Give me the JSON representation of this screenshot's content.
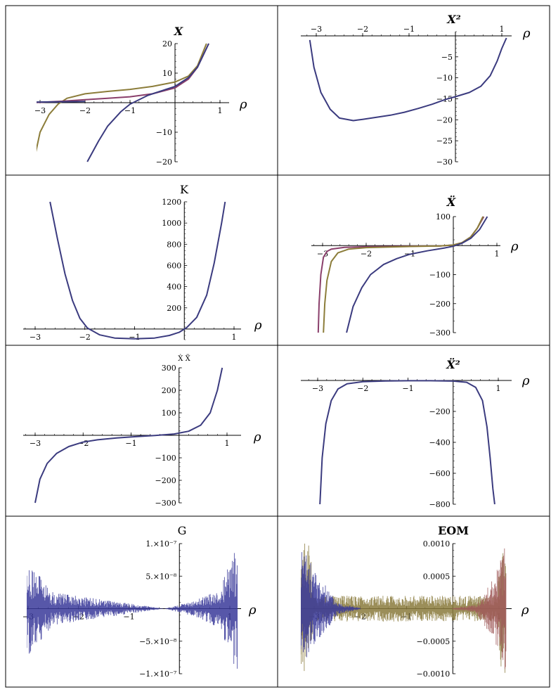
{
  "colors": {
    "blue": "#3b3b7f",
    "olive": "#8c7d3a",
    "purple": "#8a3f6b",
    "border": "#000000",
    "noise_blue": "#3a3a9a",
    "noise_olive": "#8a7a3c",
    "noise_red": "#a05a5a"
  },
  "chart_data": [
    {
      "type": "line",
      "title": "X",
      "xlabel": "ρ",
      "xlim": [
        -3.3,
        1.15
      ],
      "ylim": [
        -20,
        20
      ],
      "xticks": [
        -3,
        -2,
        -1,
        1
      ],
      "yticks": [
        -20,
        -10,
        10,
        20
      ],
      "series": [
        {
          "color": "olive",
          "x": [
            -3.14,
            -3.0,
            -2.8,
            -2.6,
            -2.4,
            -2.0,
            -1.5,
            -1.0,
            -0.5,
            0.0,
            0.3,
            0.5,
            0.7
          ],
          "y": [
            -20,
            -10,
            -4,
            -0.5,
            1.5,
            3.0,
            3.8,
            4.5,
            5.5,
            7.0,
            9.0,
            12.5,
            20
          ]
        },
        {
          "color": "purple",
          "x": [
            -3.14,
            -2.5,
            -2.0,
            -1.5,
            -1.0,
            -0.5,
            0.0,
            0.3,
            0.5,
            0.75
          ],
          "y": [
            0,
            0.5,
            1.0,
            1.5,
            2.0,
            3.0,
            5.0,
            8.0,
            12.0,
            20
          ]
        },
        {
          "color": "blue",
          "x": [
            -1.95,
            -1.7,
            -1.5,
            -1.2,
            -1.0,
            -0.6,
            -0.2,
            0.0,
            0.3,
            0.5,
            0.75
          ],
          "y": [
            -20,
            -13,
            -8,
            -3,
            -0.5,
            2.5,
            4.5,
            5.5,
            8.5,
            12.0,
            20
          ]
        },
        {
          "color": "blue",
          "x": [
            -3.14,
            -2.5,
            -2.0
          ],
          "y": [
            0.2,
            0.3,
            0.4
          ]
        }
      ]
    },
    {
      "type": "line",
      "title": "X²",
      "xlabel": "ρ",
      "xlim": [
        -3.3,
        1.15
      ],
      "ylim": [
        -30,
        1
      ],
      "xticks": [
        -3,
        -2,
        -1,
        1
      ],
      "yticks": [
        -5,
        -10,
        -15,
        -20,
        -25,
        -30
      ],
      "series": [
        {
          "color": "blue",
          "x": [
            -3.14,
            -3.05,
            -2.9,
            -2.7,
            -2.5,
            -2.2,
            -2.0,
            -1.7,
            -1.4,
            -1.1,
            -0.8,
            -0.5,
            -0.2,
            0.0,
            0.3,
            0.55,
            0.75,
            0.9,
            1.0,
            1.1
          ],
          "y": [
            -1,
            -7.5,
            -13.5,
            -17.5,
            -19.6,
            -20.2,
            -19.9,
            -19.4,
            -18.9,
            -18.2,
            -17.3,
            -16.3,
            -15.1,
            -14.5,
            -13.5,
            -12.0,
            -9.5,
            -6.0,
            -3.0,
            -0.5
          ]
        }
      ]
    },
    {
      "type": "line",
      "title": "K",
      "xlabel": "ρ",
      "xlim": [
        -3.3,
        1.15
      ],
      "ylim": [
        -100,
        1200
      ],
      "xticks": [
        -3,
        -2,
        -1,
        1
      ],
      "yticks": [
        200,
        400,
        600,
        800,
        1000,
        1200
      ],
      "series": [
        {
          "color": "blue",
          "x": [
            -2.7,
            -2.55,
            -2.4,
            -2.25,
            -2.1,
            -1.95,
            -1.7,
            -1.4,
            -1.0,
            -0.6,
            -0.3,
            -0.1,
            0.05,
            0.25,
            0.45,
            0.6,
            0.75,
            0.82
          ],
          "y": [
            1200,
            850,
            520,
            270,
            100,
            10,
            -55,
            -85,
            -92,
            -85,
            -60,
            -30,
            15,
            110,
            320,
            620,
            1000,
            1200
          ]
        }
      ]
    },
    {
      "type": "line",
      "title": "Ẍ",
      "xlabel": "ρ",
      "xlim": [
        -3.3,
        1.15
      ],
      "ylim": [
        -300,
        100
      ],
      "xticks": [
        -3,
        -2,
        -1,
        1
      ],
      "yticks": [
        100,
        -100,
        -200,
        -300
      ],
      "series": [
        {
          "color": "purple",
          "x": [
            -3.1,
            -3.08,
            -3.04,
            -2.98,
            -2.9,
            -2.8,
            -2.5,
            -2.0,
            -1.0,
            -0.3,
            0.0,
            0.2,
            0.4,
            0.55,
            0.7
          ],
          "y": [
            -300,
            -200,
            -100,
            -40,
            -20,
            -12,
            -6,
            -4,
            -2,
            -1,
            2,
            10,
            30,
            60,
            100
          ]
        },
        {
          "color": "olive",
          "x": [
            -2.98,
            -2.95,
            -2.9,
            -2.8,
            -2.65,
            -2.4,
            -2.0,
            -1.0,
            -0.3,
            0.0,
            0.2,
            0.4,
            0.55,
            0.68
          ],
          "y": [
            -300,
            -200,
            -120,
            -55,
            -25,
            -12,
            -7,
            -3,
            -1,
            2,
            10,
            30,
            60,
            100
          ]
        },
        {
          "color": "blue",
          "x": [
            -2.45,
            -2.3,
            -2.1,
            -1.9,
            -1.6,
            -1.3,
            -1.0,
            -0.6,
            -0.2,
            0.0,
            0.2,
            0.4,
            0.6,
            0.78
          ],
          "y": [
            -300,
            -210,
            -145,
            -100,
            -65,
            -45,
            -30,
            -18,
            -8,
            -2,
            8,
            25,
            55,
            100
          ]
        }
      ]
    },
    {
      "type": "line",
      "title": "Ẋ Ẍ",
      "xlabel": "ρ",
      "xlim": [
        -3.3,
        1.15
      ],
      "ylim": [
        -300,
        300
      ],
      "xticks": [
        -3,
        -2,
        -1,
        1
      ],
      "yticks": [
        300,
        200,
        100,
        -100,
        -200,
        -300
      ],
      "series": [
        {
          "color": "blue",
          "x": [
            -3.0,
            -2.9,
            -2.75,
            -2.55,
            -2.3,
            -2.0,
            -1.7,
            -1.3,
            -0.9,
            -0.5,
            -0.1,
            0.2,
            0.45,
            0.65,
            0.8,
            0.9
          ],
          "y": [
            -300,
            -195,
            -125,
            -80,
            -50,
            -30,
            -20,
            -12,
            -6,
            -1,
            6,
            18,
            45,
            100,
            200,
            300
          ]
        }
      ]
    },
    {
      "type": "line",
      "title": "Ẍ²",
      "xlabel": "ρ",
      "xlim": [
        -3.3,
        1.15
      ],
      "ylim": [
        -800,
        0
      ],
      "xticks": [
        -3,
        -2,
        -1,
        1
      ],
      "yticks": [
        -200,
        -400,
        -600,
        -800
      ],
      "series": [
        {
          "color": "blue",
          "x": [
            -2.95,
            -2.9,
            -2.82,
            -2.7,
            -2.55,
            -2.35,
            -2.0,
            -1.5,
            -1.0,
            -0.5,
            0.0,
            0.3,
            0.5,
            0.65,
            0.75,
            0.82,
            0.88,
            0.92
          ],
          "y": [
            -800,
            -500,
            -280,
            -130,
            -55,
            -22,
            -8,
            -3,
            -2,
            -2,
            -4,
            -12,
            -45,
            -130,
            -300,
            -500,
            -700,
            -800
          ]
        }
      ]
    },
    {
      "type": "line",
      "title": "G",
      "xlabel": "ρ",
      "xlim": [
        -3.3,
        1.15
      ],
      "ylim": [
        -1e-07,
        1e-07
      ],
      "xticks": [
        -3,
        -2,
        -1,
        1
      ],
      "ytick_labels": [
        "1.×10⁻⁷",
        "5.×10⁻⁸",
        "−5.×10⁻⁸",
        "−1.×10⁻⁷"
      ],
      "yticks": [
        1e-07,
        5e-08,
        -5e-08,
        -1e-07
      ],
      "series": [
        {
          "color": "noise_blue",
          "x": [
            -3.3,
            -2.5,
            -1.0,
            -0.3,
            0.3,
            0.8,
            1.15
          ],
          "amplitude": [
            1e-07,
            2.5e-08,
            8e-09,
            0,
            1.2e-08,
            3e-08,
            1e-07
          ]
        }
      ]
    },
    {
      "type": "line",
      "title": "EOM",
      "xlabel": "ρ",
      "xlim": [
        -3.3,
        1.15
      ],
      "ylim": [
        -0.001,
        0.001
      ],
      "xticks": [
        -3,
        -2,
        -1,
        1
      ],
      "ytick_labels": [
        "0.0010",
        "0.0005",
        "−0.0005",
        "−0.0010"
      ],
      "yticks": [
        0.001,
        0.0005,
        -0.0005,
        -0.001
      ],
      "series": [
        {
          "color": "noise_olive",
          "x": [
            -3.3,
            -3.1,
            -3.0,
            0.95,
            1.05,
            1.15
          ],
          "amplitude": [
            0.001,
            0.001,
            0.0002,
            0.0002,
            0.001,
            0.001
          ]
        },
        {
          "color": "noise_blue",
          "x": [
            -3.3,
            -3.0,
            -2.5,
            -2.0
          ],
          "amplitude": [
            0.001,
            0.0006,
            0.0001,
            1e-05
          ]
        },
        {
          "color": "noise_red",
          "x": [
            0.0,
            0.5,
            0.9,
            1.15
          ],
          "amplitude": [
            1e-05,
            6e-05,
            0.0005,
            0.001
          ]
        }
      ]
    }
  ]
}
